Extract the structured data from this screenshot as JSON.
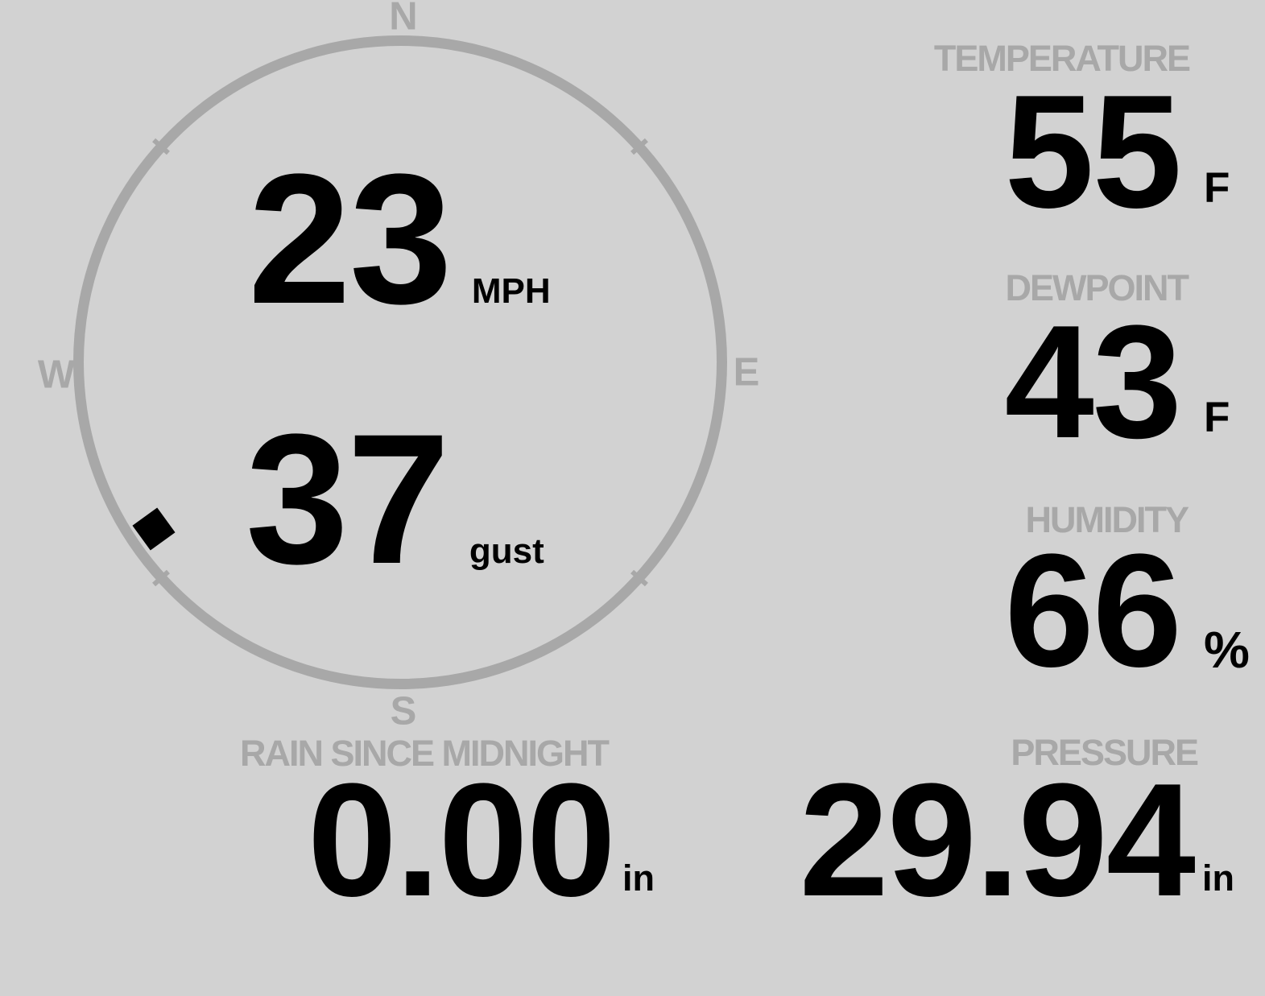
{
  "colors": {
    "background": "#d2d2d2",
    "muted_gray": "#a8a8a8",
    "value_black": "#000000"
  },
  "compass": {
    "north": "N",
    "east": "E",
    "south": "S",
    "west": "W",
    "wind_speed": "23",
    "wind_speed_unit": "MPH",
    "wind_gust": "37",
    "wind_gust_unit": "gust",
    "wind_direction_degrees": 236
  },
  "stats": {
    "temperature": {
      "label": "TEMPERATURE",
      "value": "55",
      "unit": "F"
    },
    "dewpoint": {
      "label": "DEWPOINT",
      "value": "43",
      "unit": "F"
    },
    "humidity": {
      "label": "HUMIDITY",
      "value": "66",
      "unit": "%"
    },
    "rain": {
      "label": "RAIN SINCE MIDNIGHT",
      "value": "0.00",
      "unit": "in"
    },
    "pressure": {
      "label": "PRESSURE",
      "value": "29.94",
      "unit": "in"
    }
  }
}
